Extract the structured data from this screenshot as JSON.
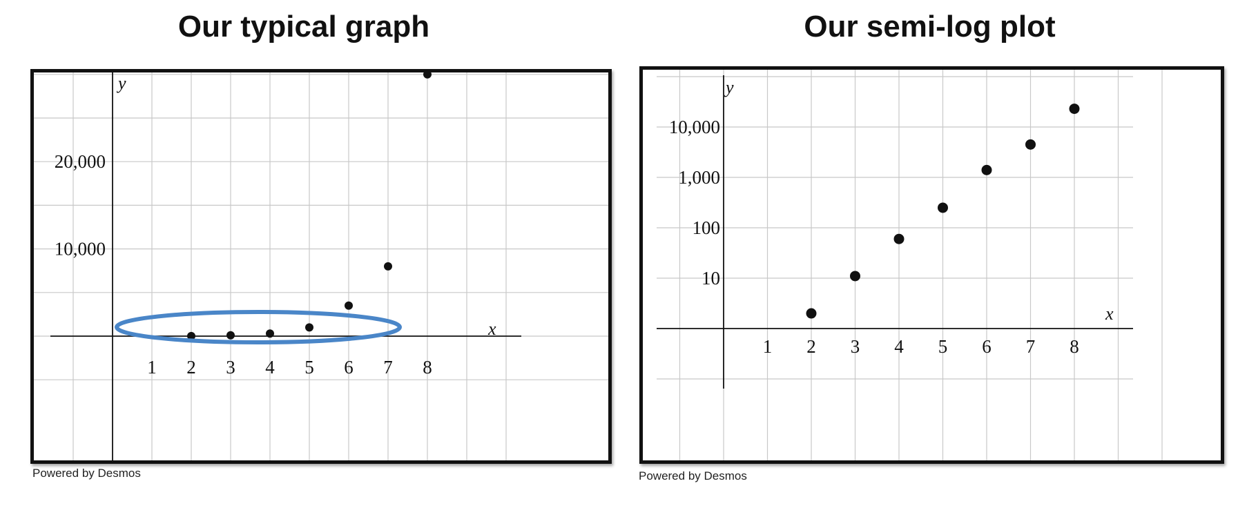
{
  "chart_data": [
    {
      "type": "scatter",
      "title": "Our typical graph",
      "xlabel": "x",
      "ylabel": "y",
      "x_ticks": [
        "1",
        "2",
        "3",
        "4",
        "5",
        "6",
        "7",
        "8"
      ],
      "y_ticks": [
        "10,000",
        "20,000"
      ],
      "xlim": [
        -1,
        10
      ],
      "ylim": [
        -5000,
        30000
      ],
      "grid": true,
      "x": [
        2,
        3,
        4,
        5,
        6,
        7,
        8
      ],
      "y": [
        10,
        100,
        300,
        1000,
        3500,
        8000,
        30000
      ],
      "highlight": {
        "shape": "ellipse",
        "color": "#4a86c8",
        "note": "points near zero"
      },
      "footer": "Powered by Desmos"
    },
    {
      "type": "scatter",
      "title": "Our semi-log plot",
      "xlabel": "x",
      "ylabel": "y",
      "x_ticks": [
        "1",
        "2",
        "3",
        "4",
        "5",
        "6",
        "7",
        "8"
      ],
      "y_ticks": [
        "10",
        "100",
        "1,000",
        "10,000"
      ],
      "y_scale": "log",
      "xlim": [
        -1,
        10
      ],
      "grid": true,
      "x": [
        2,
        3,
        4,
        5,
        6,
        7,
        8
      ],
      "y": [
        2,
        11,
        60,
        250,
        1400,
        4500,
        23000
      ],
      "footer": "Powered by Desmos"
    }
  ]
}
